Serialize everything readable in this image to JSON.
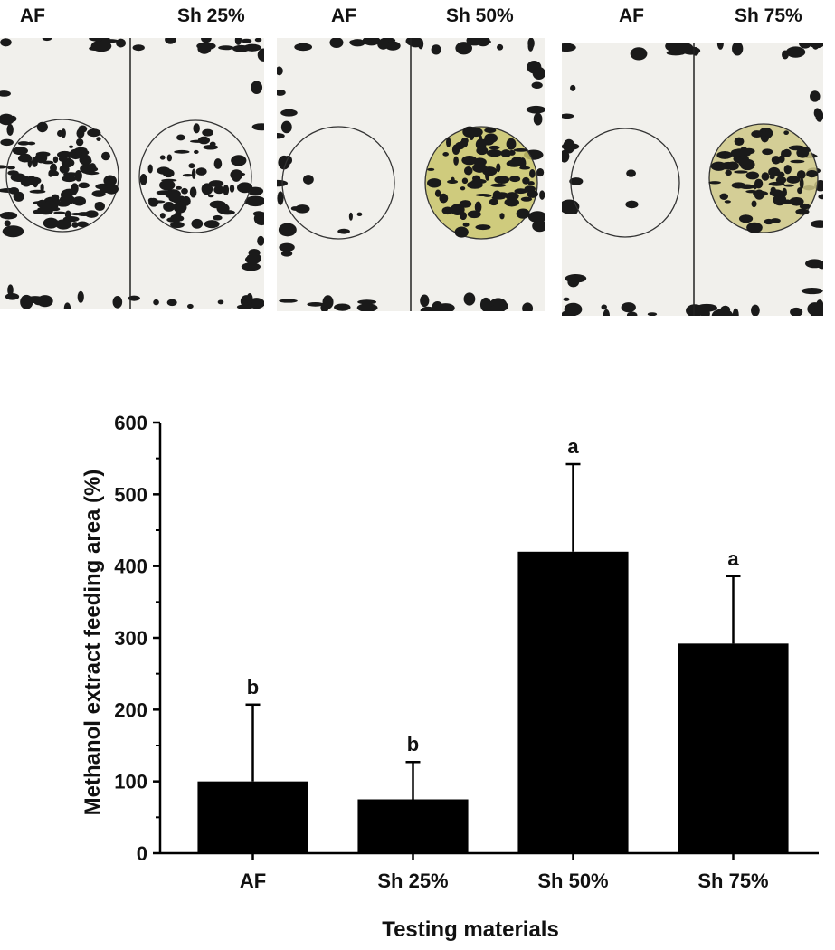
{
  "photos": [
    {
      "left_label": "AF",
      "right_label": "Sh 25%",
      "treated_color": ""
    },
    {
      "left_label": "AF",
      "right_label": "Sh 50%",
      "treated_color": "#c9c46a"
    },
    {
      "left_label": "AF",
      "right_label": "Sh 75%",
      "treated_color": "#cfc887"
    }
  ],
  "colors": {
    "bar": "#000000",
    "ink": "#111111",
    "paper": "#f1f0ec",
    "stain": "#1a1a1a"
  },
  "chart_data": {
    "type": "bar",
    "categories": [
      "AF",
      "Sh 25%",
      "Sh 50%",
      "Sh 75%"
    ],
    "values": [
      100,
      75,
      420,
      292
    ],
    "errors": [
      107,
      52,
      122,
      94
    ],
    "significance": [
      "b",
      "b",
      "a",
      "a"
    ],
    "xlabel": "Testing materials",
    "ylabel": "Methanol extract feeding area (%)",
    "ylim": [
      0,
      600
    ],
    "yticks": [
      0,
      100,
      200,
      300,
      400,
      500,
      600
    ],
    "grid": false,
    "legend": "none"
  }
}
